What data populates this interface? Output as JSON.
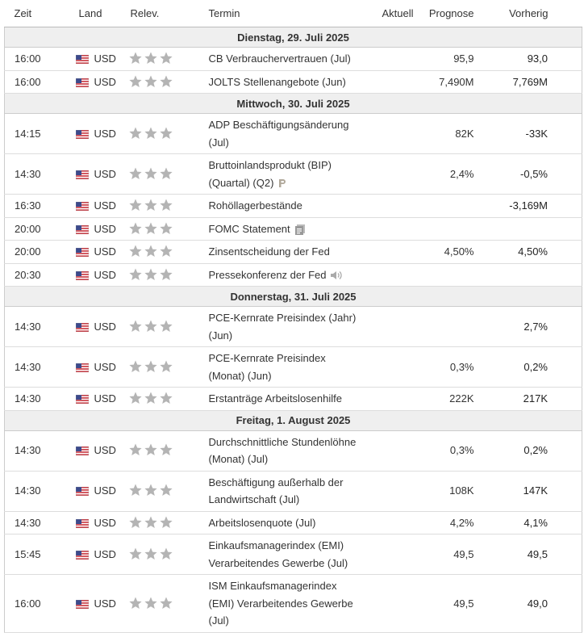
{
  "header": {
    "columns": [
      "Zeit",
      "Land",
      "Relev.",
      "Termin",
      "Aktuell",
      "Prognose",
      "Vorherig"
    ]
  },
  "days": [
    {
      "date": "Dienstag, 29. Juli 2025",
      "events": [
        {
          "time": "16:00",
          "currency": "USD",
          "event": [
            "CB Verbrauchervertrauen (Jul)"
          ],
          "forecast": "95,9",
          "previous": "93,0"
        },
        {
          "time": "16:00",
          "currency": "USD",
          "event": [
            "JOLTS Stellenangebote (Jun)"
          ],
          "forecast": "7,490M",
          "previous": "7,769M"
        }
      ]
    },
    {
      "date": "Mittwoch, 30. Juli 2025",
      "events": [
        {
          "time": "14:15",
          "currency": "USD",
          "event": [
            "ADP Beschäftigungsänderung",
            "(Jul)"
          ],
          "forecast": "82K",
          "previous": "-33K"
        },
        {
          "time": "14:30",
          "currency": "USD",
          "event": [
            "Bruttoinlandsprodukt (BIP)",
            "(Quartal) (Q2)"
          ],
          "forecast": "2,4%",
          "previous": "-0,5%"
        },
        {
          "time": "16:30",
          "currency": "USD",
          "event": [
            "Rohöllagerbestände"
          ],
          "previous": "-3,169M"
        },
        {
          "time": "20:00",
          "currency": "USD",
          "event": [
            "FOMC Statement"
          ]
        },
        {
          "time": "20:00",
          "currency": "USD",
          "event": [
            "Zinsentscheidung der Fed"
          ],
          "forecast": "4,50%",
          "previous": "4,50%"
        },
        {
          "time": "20:30",
          "currency": "USD",
          "event": [
            "Pressekonferenz der Fed"
          ]
        }
      ]
    },
    {
      "date": "Donnerstag, 31. Juli 2025",
      "events": [
        {
          "time": "14:30",
          "currency": "USD",
          "event": [
            "PCE-Kernrate Preisindex (Jahr)",
            "(Jun)"
          ],
          "previous": "2,7%"
        },
        {
          "time": "14:30",
          "currency": "USD",
          "event": [
            "PCE-Kernrate Preisindex",
            "(Monat) (Jun)"
          ],
          "forecast": "0,3%",
          "previous": "0,2%"
        },
        {
          "time": "14:30",
          "currency": "USD",
          "event": [
            "Erstanträge Arbeitslosenhilfe"
          ],
          "forecast": "222K",
          "previous": "217K"
        }
      ]
    },
    {
      "date": "Freitag, 1. August 2025",
      "events": [
        {
          "time": "14:30",
          "currency": "USD",
          "event": [
            "Durchschnittliche Stundenlöhne",
            "(Monat) (Jul)"
          ],
          "forecast": "0,3%",
          "previous": "0,2%"
        },
        {
          "time": "14:30",
          "currency": "USD",
          "event": [
            "Beschäftigung außerhalb der",
            "Landwirtschaft (Jul)"
          ],
          "forecast": "108K",
          "previous": "147K"
        },
        {
          "time": "14:30",
          "currency": "USD",
          "event": [
            "Arbeitslosenquote (Jul)"
          ],
          "forecast": "4,2%",
          "previous": "4,1%"
        },
        {
          "time": "15:45",
          "currency": "USD",
          "event": [
            "Einkaufsmanagerindex (EMI)",
            "Verarbeitendes Gewerbe (Jul)"
          ],
          "forecast": "49,5",
          "previous": "49,5"
        },
        {
          "time": "16:00",
          "currency": "USD",
          "event": [
            "ISM Einkaufsmanagerindex",
            "(EMI) Verarbeitendes Gewerbe",
            "(Jul)"
          ],
          "forecast": "49,5",
          "previous": "49,0"
        }
      ]
    }
  ]
}
